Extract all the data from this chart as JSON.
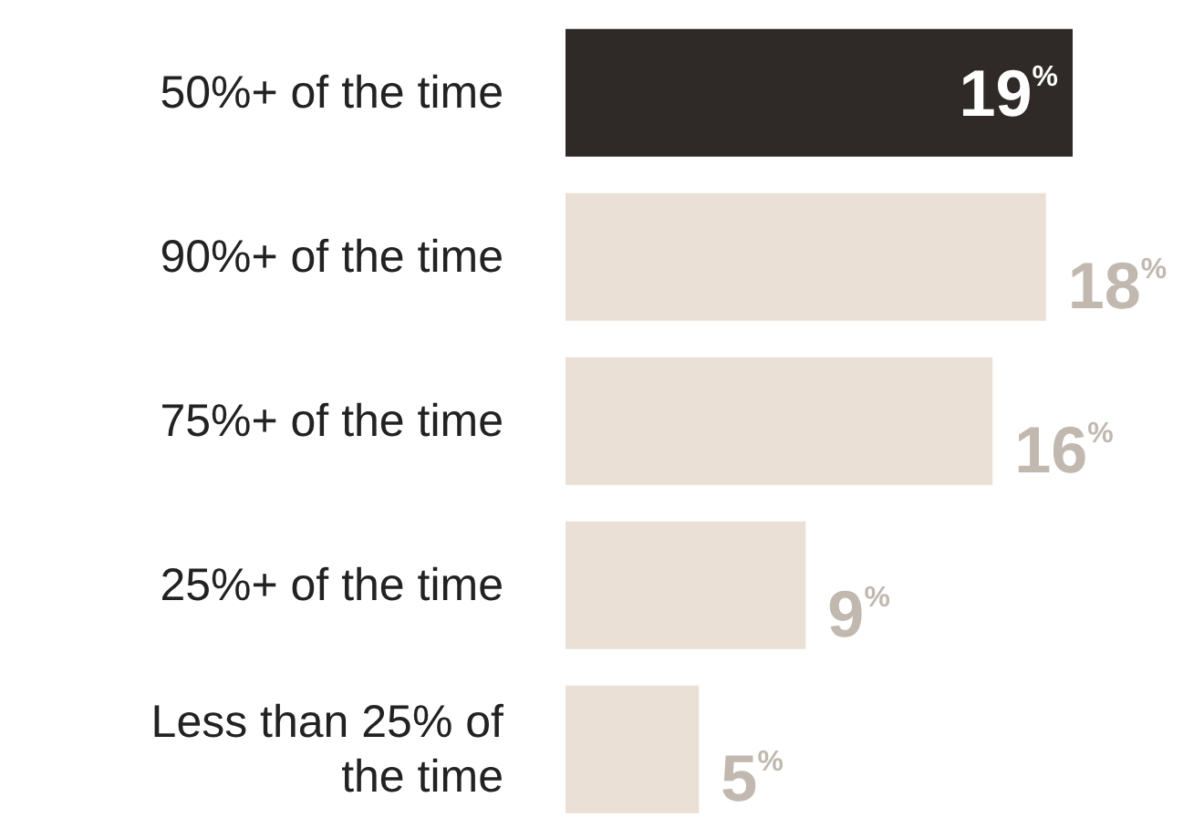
{
  "chart_data": {
    "type": "bar",
    "orientation": "horizontal",
    "categories": [
      "50%+ of the time",
      "90%+ of the time",
      "75%+ of the time",
      "25%+ of the time",
      "Less than 25% of the time"
    ],
    "values": [
      19,
      18,
      16,
      9,
      5
    ],
    "colors": [
      "#2f2a27",
      "#ebe0d6",
      "#ebe0d6",
      "#ebe0d6",
      "#ebe0d6"
    ],
    "value_labels": [
      "19$^{%}$",
      "18$^{%}$",
      "16$^{%}$",
      "9$^{%}$",
      "5$^{%}$"
    ]
  }
}
